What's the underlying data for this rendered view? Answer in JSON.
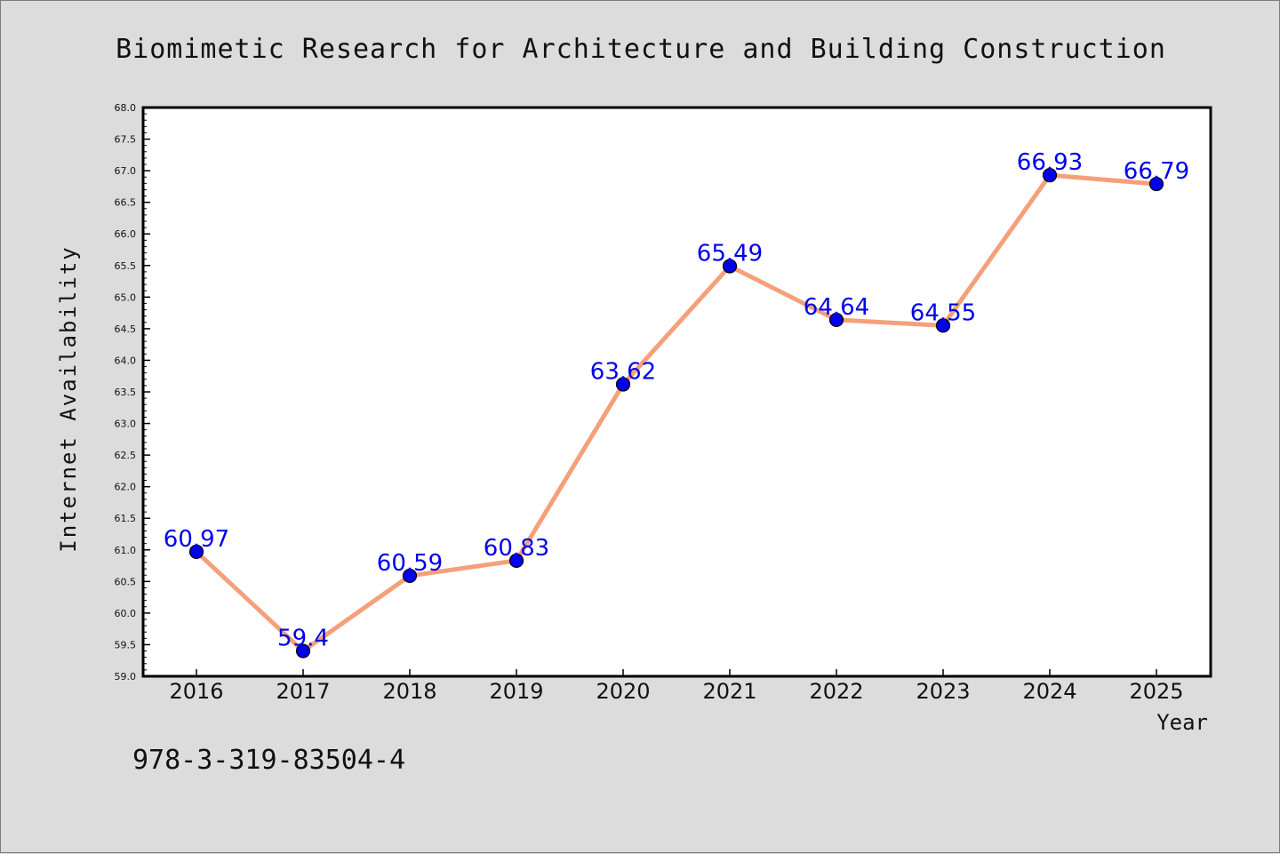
{
  "chart_data": {
    "type": "line",
    "title": "Biomimetic Research for Architecture and Building Construction",
    "xlabel": "Year",
    "ylabel": "Internet Availability",
    "categories": [
      "2016",
      "2017",
      "2018",
      "2019",
      "2020",
      "2021",
      "2022",
      "2023",
      "2024",
      "2025"
    ],
    "series": [
      {
        "values": [
          60.97,
          59.4,
          60.59,
          60.83,
          63.62,
          65.49,
          64.64,
          64.55,
          66.93,
          66.79
        ],
        "labels": [
          "60.97",
          "59.4",
          "60.59",
          "60.83",
          "63.62",
          "65.49",
          "64.64",
          "64.55",
          "66.93",
          "66.79"
        ],
        "line_color": "#f5a07a",
        "marker_color": "#0000ee"
      }
    ],
    "ylim": [
      59.0,
      68.0
    ],
    "yticks": [
      "59.0",
      "59.5",
      "60.0",
      "60.5",
      "61.0",
      "61.5",
      "62.0",
      "62.5",
      "63.0",
      "63.5",
      "64.0",
      "64.5",
      "65.0",
      "65.5",
      "66.0",
      "66.5",
      "67.0",
      "67.5",
      "68.0"
    ],
    "grid": false,
    "legend": "none"
  },
  "footer": {
    "isbn": "978-3-319-83504-4"
  },
  "colors": {
    "background": "#dcdcdc",
    "plot_background": "#ffffff"
  }
}
